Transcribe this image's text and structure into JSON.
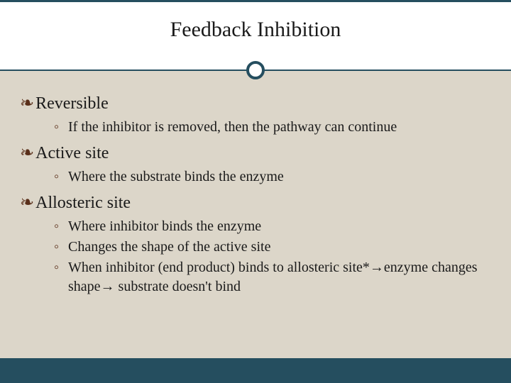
{
  "slide": {
    "title": "Feedback Inhibition",
    "title_fontsize": 30,
    "heading_fontsize": 24,
    "subtext_fontsize": 20,
    "colors": {
      "background": "#ffffff",
      "content_background": "#dcd6c9",
      "accent": "#254e5f",
      "bullet_color": "#5a2f1a",
      "text": "#1a1a1a",
      "footer_bar": "#254e5f"
    },
    "sections": [
      {
        "heading": "Reversible",
        "items": [
          "If the inhibitor is removed, then the pathway can continue"
        ]
      },
      {
        "heading": "Active site",
        "items": [
          "Where the substrate binds the enzyme"
        ]
      },
      {
        "heading": "Allosteric site",
        "items": [
          "Where inhibitor binds the enzyme",
          "Changes the shape of the active site",
          "When inhibitor (end product) binds to allosteric site*→enzyme changes shape→ substrate doesn't bind"
        ]
      }
    ],
    "bullet_glyph": "❧"
  }
}
